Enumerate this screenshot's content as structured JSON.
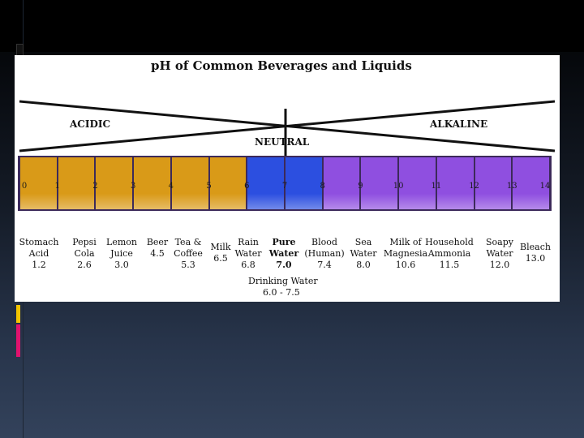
{
  "slide": {
    "title": "pH of Common Beverages and Liquids",
    "zones": {
      "acidic": "ACIDIC",
      "neutral": "NEUTRAL",
      "alkaline": "ALKALINE"
    },
    "scale_numbers": [
      "0",
      "1",
      "2",
      "3",
      "4",
      "5",
      "6",
      "7",
      "8",
      "9",
      "10",
      "11",
      "12",
      "13",
      "14"
    ],
    "colors": {
      "acid": "#d99a18",
      "neutral": "#2c4fe0",
      "base": "#8f4fe0",
      "frame": "#3c2a5a"
    },
    "items": [
      {
        "lines": [
          "Stomach",
          "Acid",
          "1.2"
        ]
      },
      {
        "lines": [
          "Pepsi",
          "Cola",
          "2.6"
        ]
      },
      {
        "lines": [
          "Lemon",
          "Juice",
          "3.0"
        ]
      },
      {
        "lines": [
          "Beer",
          "4.5"
        ]
      },
      {
        "lines": [
          "Tea &",
          "Coffee",
          "5.3"
        ]
      },
      {
        "lines": [
          "Milk",
          "6.5"
        ]
      },
      {
        "lines": [
          "Rain",
          "Water",
          "6.8"
        ]
      },
      {
        "lines": [
          "Pure",
          "Water",
          "7.0"
        ]
      },
      {
        "lines": [
          "Blood",
          "(Human)",
          "7.4"
        ]
      },
      {
        "lines": [
          "Sea",
          "Water",
          "8.0"
        ]
      },
      {
        "lines": [
          "Milk of",
          "Magnesia",
          "10.6"
        ]
      },
      {
        "lines": [
          "Household",
          "Ammonia",
          "11.5"
        ]
      },
      {
        "lines": [
          "Soapy",
          "Water",
          "12.0"
        ]
      },
      {
        "lines": [
          "Bleach",
          "13.0"
        ]
      }
    ],
    "drinking_water": {
      "label": "Drinking Water",
      "range": "6.0 - 7.5"
    }
  }
}
